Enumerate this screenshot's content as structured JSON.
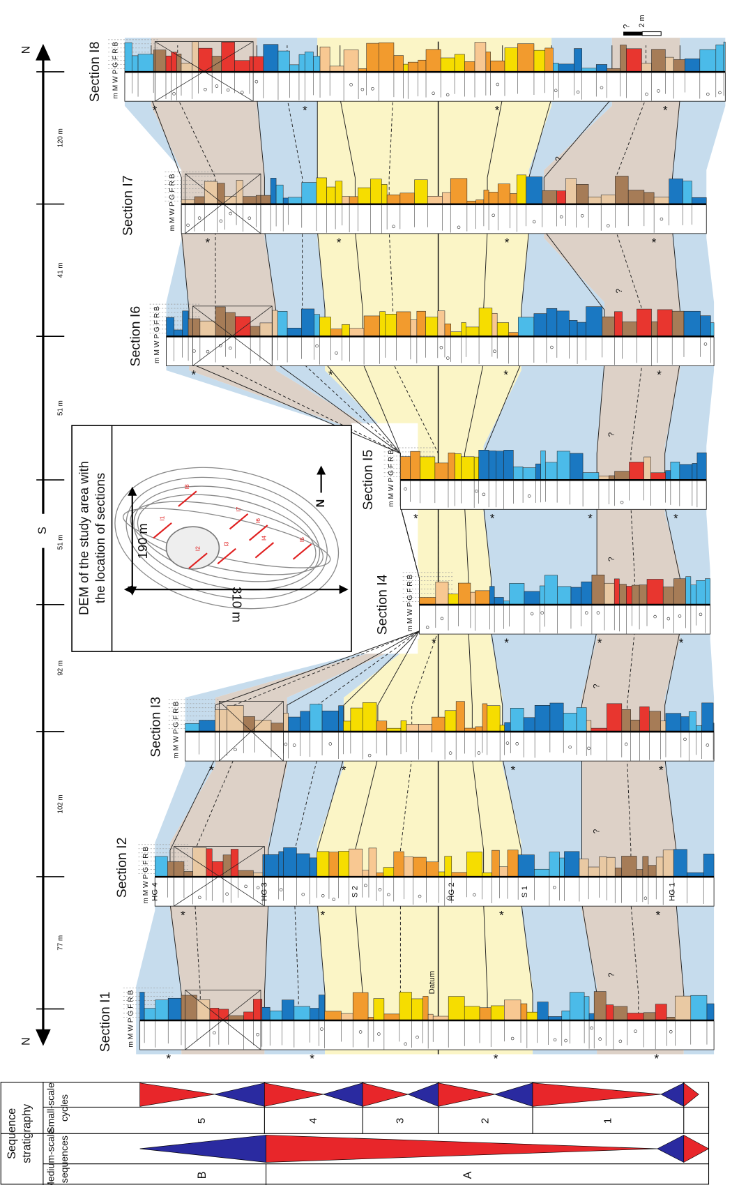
{
  "scale_bar": {
    "north_top": "N",
    "south": "S",
    "north_bottom": "N",
    "distances": [
      "77 m",
      "102 m",
      "92 m",
      "51 m",
      "51 m",
      "41 m",
      "120 m"
    ]
  },
  "sections": [
    {
      "title": "Section I1",
      "grain_sizes": "m M W P G F R B"
    },
    {
      "title": "Section I2",
      "grain_sizes": "m M W P G F R B"
    },
    {
      "title": "Section I3",
      "grain_sizes": "m M W P G F R B"
    },
    {
      "title": "Section I4",
      "grain_sizes": "m M W P G F R B"
    },
    {
      "title": "Section I5",
      "grain_sizes": "m M W P G F R B"
    },
    {
      "title": "Section I6",
      "grain_sizes": "m M W P G F R B"
    },
    {
      "title": "Section I7",
      "grain_sizes": "m M W P G F R B"
    },
    {
      "title": "Section I8",
      "grain_sizes": "m M W P G F R B"
    }
  ],
  "correlation_labels": [
    "HG 4",
    "HG 3",
    "S 2",
    "Datum",
    "HG 2",
    "S 1",
    "HG 1"
  ],
  "inset": {
    "title": [
      "DEM of the study area with",
      "the location of sections"
    ],
    "width": "190 m",
    "length": "310 m",
    "north": "N",
    "section_labels": [
      "I1",
      "I2",
      "I3",
      "I4",
      "I5",
      "I6",
      "I7",
      "I8"
    ]
  },
  "scale": "2 m",
  "sample_marker": "*",
  "question_mark": "?",
  "sequence_stratigraphy": {
    "title": [
      "Sequence",
      "stratigraphy"
    ],
    "small_header": [
      "Small-scale",
      "cycles"
    ],
    "medium_header": [
      "Medium-scale",
      "sequences"
    ],
    "cycles": [
      "5",
      "4",
      "3",
      "2",
      "1"
    ],
    "sequences": [
      "B",
      "A"
    ]
  }
}
